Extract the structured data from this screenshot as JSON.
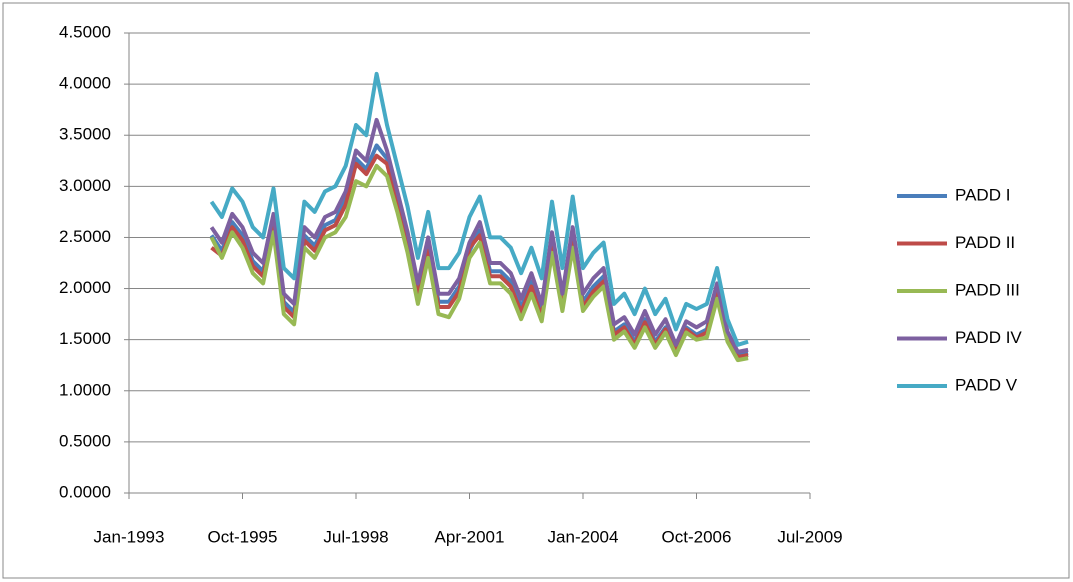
{
  "chart_data": {
    "type": "line",
    "x": [
      "1995-01",
      "1995-04",
      "1995-07",
      "1995-10",
      "1996-01",
      "1996-04",
      "1996-07",
      "1996-10",
      "1997-01",
      "1997-04",
      "1997-07",
      "1997-10",
      "1998-01",
      "1998-04",
      "1998-07",
      "1998-10",
      "1999-01",
      "1999-04",
      "1999-07",
      "1999-10",
      "2000-01",
      "2000-04",
      "2000-07",
      "2000-10",
      "2001-01",
      "2001-04",
      "2001-07",
      "2001-10",
      "2002-01",
      "2002-04",
      "2002-07",
      "2002-10",
      "2003-01",
      "2003-04",
      "2003-07",
      "2003-10",
      "2004-01",
      "2004-04",
      "2004-07",
      "2004-10",
      "2005-01",
      "2005-04",
      "2005-07",
      "2005-10",
      "2006-01",
      "2006-04",
      "2006-07",
      "2006-10",
      "2007-01",
      "2007-04",
      "2007-07",
      "2007-10",
      "2008-01"
    ],
    "series": [
      {
        "name": "PADD I",
        "color": "#4a7ebb",
        "values": [
          2.52,
          2.37,
          2.65,
          2.52,
          2.27,
          2.17,
          2.65,
          1.87,
          1.77,
          2.52,
          2.42,
          2.62,
          2.67,
          2.87,
          3.27,
          3.17,
          3.4,
          3.27,
          2.87,
          2.47,
          1.97,
          2.42,
          1.87,
          1.87,
          2.02,
          2.37,
          2.57,
          2.17,
          2.17,
          2.07,
          1.82,
          2.07,
          1.77,
          2.45,
          1.87,
          2.5,
          1.87,
          2.02,
          2.12,
          1.58,
          1.65,
          1.48,
          1.7,
          1.48,
          1.62,
          1.4,
          1.62,
          1.55,
          1.6,
          1.98,
          1.52,
          1.35,
          1.37
        ]
      },
      {
        "name": "PADD II",
        "color": "#be4b48",
        "values": [
          2.4,
          2.32,
          2.6,
          2.47,
          2.22,
          2.12,
          2.6,
          1.82,
          1.72,
          2.47,
          2.37,
          2.57,
          2.62,
          2.82,
          3.22,
          3.12,
          3.3,
          3.22,
          2.82,
          2.42,
          1.92,
          2.37,
          1.82,
          1.82,
          1.97,
          2.4,
          2.52,
          2.12,
          2.12,
          2.02,
          1.77,
          2.02,
          1.72,
          2.4,
          1.82,
          2.45,
          1.82,
          1.97,
          2.07,
          1.55,
          1.62,
          1.45,
          1.67,
          1.45,
          1.6,
          1.38,
          1.6,
          1.52,
          1.57,
          1.95,
          1.5,
          1.33,
          1.35
        ]
      },
      {
        "name": "PADD III",
        "color": "#98b954",
        "values": [
          2.5,
          2.3,
          2.55,
          2.4,
          2.15,
          2.05,
          2.55,
          1.75,
          1.65,
          2.4,
          2.3,
          2.5,
          2.55,
          2.7,
          3.05,
          3.0,
          3.2,
          3.1,
          2.75,
          2.35,
          1.85,
          2.3,
          1.75,
          1.72,
          1.9,
          2.3,
          2.45,
          2.05,
          2.05,
          1.95,
          1.7,
          1.95,
          1.68,
          2.35,
          1.78,
          2.4,
          1.78,
          1.92,
          2.02,
          1.5,
          1.58,
          1.42,
          1.62,
          1.42,
          1.57,
          1.35,
          1.57,
          1.5,
          1.52,
          1.9,
          1.48,
          1.3,
          1.32
        ]
      },
      {
        "name": "PADD IV",
        "color": "#7d60a0",
        "values": [
          2.6,
          2.45,
          2.73,
          2.6,
          2.35,
          2.25,
          2.73,
          1.95,
          1.85,
          2.6,
          2.5,
          2.7,
          2.75,
          2.95,
          3.35,
          3.25,
          3.65,
          3.35,
          2.95,
          2.55,
          2.05,
          2.5,
          1.95,
          1.95,
          2.1,
          2.45,
          2.65,
          2.25,
          2.25,
          2.15,
          1.9,
          2.15,
          1.85,
          2.55,
          1.95,
          2.6,
          1.95,
          2.1,
          2.2,
          1.65,
          1.72,
          1.55,
          1.78,
          1.55,
          1.7,
          1.45,
          1.68,
          1.62,
          1.68,
          2.05,
          1.58,
          1.38,
          1.4
        ]
      },
      {
        "name": "PADD V",
        "color": "#46aac5",
        "values": [
          2.85,
          2.7,
          2.98,
          2.85,
          2.6,
          2.5,
          2.98,
          2.2,
          2.1,
          2.85,
          2.75,
          2.95,
          3.0,
          3.2,
          3.6,
          3.5,
          4.1,
          3.6,
          3.2,
          2.8,
          2.3,
          2.75,
          2.2,
          2.2,
          2.35,
          2.7,
          2.9,
          2.5,
          2.5,
          2.4,
          2.15,
          2.4,
          2.1,
          2.85,
          2.2,
          2.9,
          2.2,
          2.35,
          2.45,
          1.85,
          1.95,
          1.75,
          2.0,
          1.75,
          1.9,
          1.6,
          1.85,
          1.8,
          1.85,
          2.2,
          1.7,
          1.45,
          1.48
        ]
      }
    ],
    "xlim": [
      "1993-01",
      "2009-07"
    ],
    "xticks": [
      {
        "value": "1993-01",
        "label": "Jan-1993"
      },
      {
        "value": "1995-10",
        "label": "Oct-1995"
      },
      {
        "value": "1998-07",
        "label": "Jul-1998"
      },
      {
        "value": "2001-04",
        "label": "Apr-2001"
      },
      {
        "value": "2004-01",
        "label": "Jan-2004"
      },
      {
        "value": "2006-10",
        "label": "Oct-2006"
      },
      {
        "value": "2009-07",
        "label": "Jul-2009"
      }
    ],
    "ylim": [
      0,
      4.5
    ],
    "yticks": [
      {
        "value": 0,
        "label": "0.0000"
      },
      {
        "value": 0.5,
        "label": "0.5000"
      },
      {
        "value": 1,
        "label": "1.0000"
      },
      {
        "value": 1.5,
        "label": "1.5000"
      },
      {
        "value": 2,
        "label": "2.0000"
      },
      {
        "value": 2.5,
        "label": "2.5000"
      },
      {
        "value": 3,
        "label": "3.0000"
      },
      {
        "value": 3.5,
        "label": "3.5000"
      },
      {
        "value": 4,
        "label": "4.0000"
      },
      {
        "value": 4.5,
        "label": "4.5000"
      }
    ],
    "grid": true,
    "legend": "right"
  }
}
